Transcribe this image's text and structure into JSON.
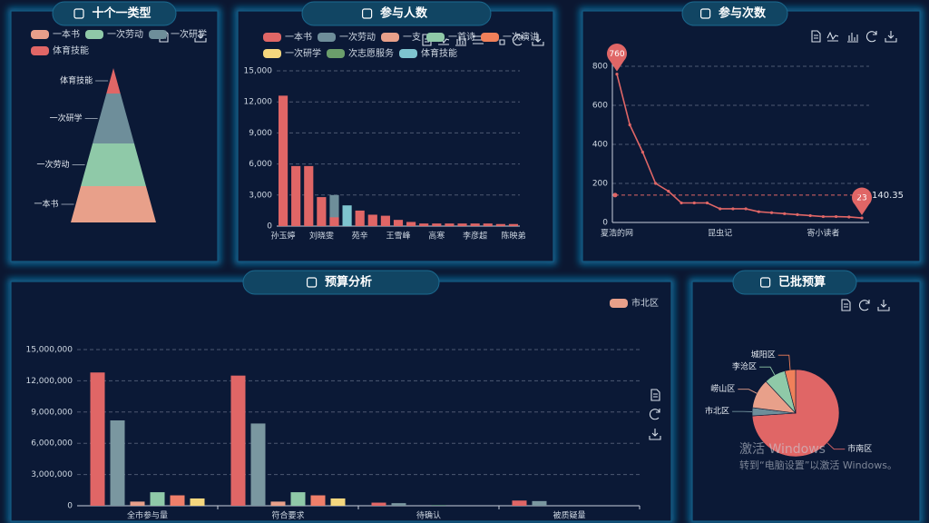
{
  "chart_data": [
    {
      "type": "pyramid",
      "title": "十个一类型",
      "categories": [
        "一本书",
        "一次劳动",
        "一次研学",
        "体育技能"
      ],
      "values": [
        40,
        47,
        55,
        28
      ],
      "colors": [
        "#e8a08a",
        "#8fc9a8",
        "#6e8e9a",
        "#e06666"
      ]
    },
    {
      "type": "bar",
      "title": "参与人数",
      "categories": [
        "孙玉婷",
        null,
        null,
        "刘晓雯",
        null,
        null,
        "苑辛",
        null,
        null,
        "王雪峰",
        null,
        null,
        "高寒",
        null,
        null,
        "李彦超",
        null,
        null,
        "陈映弟"
      ],
      "series": [
        {
          "name": "一本书",
          "color": "#e06666",
          "values": [
            12600,
            5800,
            5800,
            2800,
            850,
            null,
            1500,
            1100,
            1000,
            600,
            400,
            250,
            250,
            250,
            250,
            250,
            250,
            200,
            200
          ]
        },
        {
          "name": "一次劳动",
          "color": "#6e8e9a",
          "values": [
            null,
            null,
            null,
            null,
            3000,
            null,
            null,
            null,
            null,
            null,
            null,
            null,
            null,
            null,
            null,
            null,
            null,
            null,
            null
          ]
        },
        {
          "name": "一支",
          "color": "#e8a08a",
          "values": [
            null,
            null,
            null,
            null,
            null,
            null,
            null,
            null,
            null,
            null,
            null,
            null,
            null,
            null,
            null,
            null,
            null,
            null,
            null
          ]
        },
        {
          "name": "一首诗",
          "color": "#8fc9a8",
          "values": [
            null,
            null,
            null,
            null,
            null,
            null,
            null,
            null,
            null,
            null,
            null,
            null,
            null,
            null,
            null,
            null,
            null,
            null,
            null
          ]
        },
        {
          "name": "一次演讲",
          "color": "#f0805a",
          "values": [
            null,
            null,
            null,
            null,
            null,
            null,
            null,
            null,
            null,
            null,
            null,
            null,
            null,
            null,
            null,
            null,
            null,
            null,
            null
          ]
        },
        {
          "name": "一次研学",
          "color": "#f5d77e",
          "values": [
            null,
            null,
            null,
            null,
            null,
            null,
            null,
            null,
            null,
            null,
            null,
            null,
            null,
            null,
            null,
            null,
            null,
            null,
            null
          ]
        },
        {
          "name": "次志愿服务",
          "color": "#6b9e6b",
          "values": [
            null,
            null,
            null,
            null,
            null,
            null,
            null,
            null,
            null,
            null,
            null,
            null,
            null,
            null,
            null,
            null,
            null,
            null,
            null
          ]
        },
        {
          "name": "体育技能",
          "color": "#7ec4cf",
          "values": [
            null,
            null,
            null,
            null,
            null,
            2000,
            null,
            null,
            null,
            null,
            null,
            null,
            null,
            null,
            null,
            null,
            null,
            null,
            null
          ]
        }
      ],
      "ylim": [
        0,
        15000
      ],
      "yticks": [
        0,
        {
          "value": 3000,
          "label": "3,000"
        },
        {
          "value": 6000,
          "label": "6,000"
        },
        {
          "value": 9000,
          "label": "9,000"
        },
        {
          "value": 12000,
          "label": "12,000"
        },
        {
          "value": 15000,
          "label": "15,000"
        }
      ],
      "grid": true
    },
    {
      "type": "line",
      "title": "参与次数",
      "categories": [
        "夏浩的网",
        null,
        null,
        null,
        null,
        null,
        null,
        null,
        "昆虫记",
        null,
        null,
        null,
        null,
        null,
        null,
        null,
        "寄小读者",
        null,
        null,
        null
      ],
      "values": [
        760,
        500,
        360,
        200,
        160,
        100,
        100,
        100,
        70,
        70,
        70,
        55,
        50,
        45,
        40,
        35,
        30,
        30,
        28,
        23
      ],
      "color": "#e06666",
      "average_line": 140.35,
      "ylim": [
        0,
        800
      ],
      "yticks": [
        0,
        200,
        400,
        600,
        800
      ],
      "grid": true
    },
    {
      "type": "bar",
      "title": "预算分析",
      "categories": [
        "全市参与量",
        "符合要求",
        "待确认",
        "被质疑量"
      ],
      "series": [
        {
          "color": "#e06666",
          "values": [
            12800000,
            12500000,
            300000,
            500000
          ]
        },
        {
          "color": "#7a97a0",
          "values": [
            8200000,
            7900000,
            250000,
            450000
          ]
        },
        {
          "name": "市北区",
          "color": "#e8a08a",
          "values": [
            400000,
            400000,
            0,
            0
          ]
        },
        {
          "color": "#8fc9a8",
          "values": [
            1300000,
            1300000,
            50000,
            0
          ]
        },
        {
          "color": "#ef7f6a",
          "values": [
            1000000,
            1000000,
            0,
            0
          ]
        },
        {
          "color": "#f5d77e",
          "values": [
            700000,
            700000,
            0,
            0
          ]
        }
      ],
      "ylim": [
        0,
        15000000
      ],
      "yticks": [
        0,
        {
          "value": 3000000,
          "label": "3,000,000"
        },
        {
          "value": 6000000,
          "label": "6,000,000"
        },
        {
          "value": 9000000,
          "label": "9,000,000"
        },
        {
          "value": 12000000,
          "label": "12,000,000"
        },
        {
          "value": 15000000,
          "label": "15,000,000"
        }
      ],
      "grid": true
    },
    {
      "type": "pie",
      "title": "已批预算",
      "categories": [
        "市南区",
        "市北区",
        "崂山区",
        "李沧区",
        "城阳区"
      ],
      "values": [
        74,
        3,
        11,
        8,
        4
      ],
      "colors": [
        "#e06666",
        "#6e8e9a",
        "#e8a08a",
        "#8fc9a8",
        "#f0805a"
      ]
    }
  ],
  "watermark": {
    "title": "激活 Windows",
    "text": "转到“电脑设置”以激活 Windows。"
  }
}
